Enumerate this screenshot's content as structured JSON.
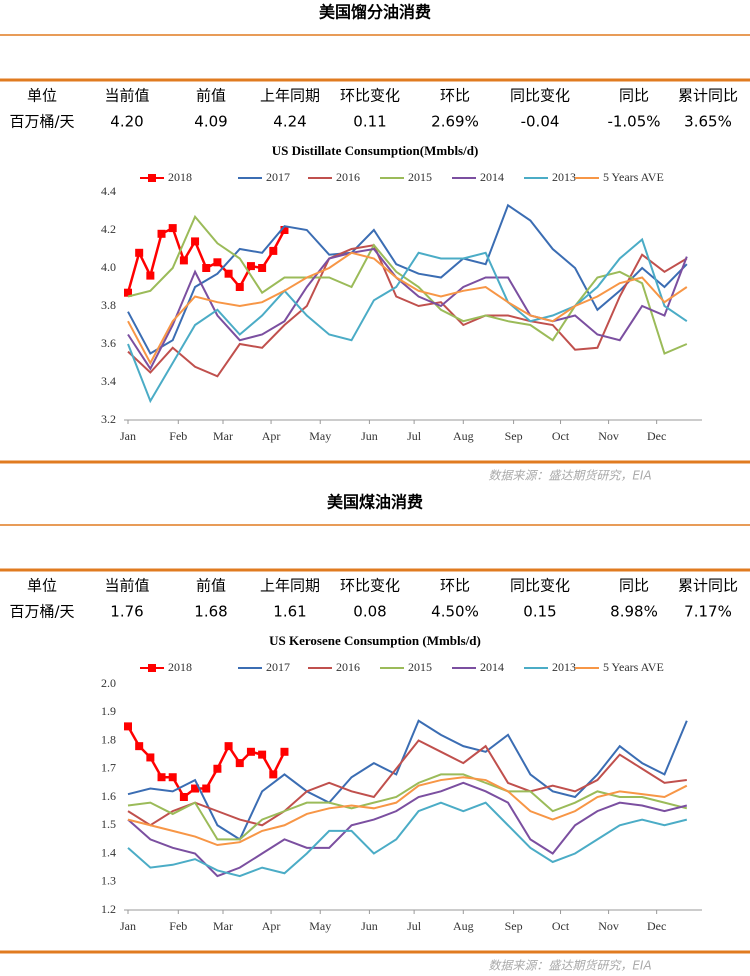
{
  "sections": [
    {
      "title": "美国馏分油消费",
      "table": {
        "header": [
          "单位",
          "当前值",
          "前值",
          "上年同期",
          "环比变化",
          "环比",
          "同比变化",
          "同比",
          "累计同比"
        ],
        "row": [
          "百万桶/天",
          "4.20",
          "4.09",
          "4.24",
          "0.11",
          "2.69%",
          "-0.04",
          "-1.05%",
          "3.65%"
        ]
      },
      "source": "数据来源：盛达期货研究，EIA"
    },
    {
      "title": "美国煤油消费",
      "table": {
        "header": [
          "单位",
          "当前值",
          "前值",
          "上年同期",
          "环比变化",
          "环比",
          "同比变化",
          "同比",
          "累计同比"
        ],
        "row": [
          "百万桶/天",
          "1.76",
          "1.68",
          "1.61",
          "0.08",
          "4.50%",
          "0.15",
          "8.98%",
          "7.17%"
        ]
      },
      "source": "数据来源：盛达期货研究，EIA"
    }
  ],
  "chart_data": [
    {
      "type": "line",
      "title": "US Distillate Consumption(Mmbls/d)",
      "xlim": [
        1,
        52
      ],
      "ylim": [
        3.2,
        4.4
      ],
      "xticks": [
        {
          "value": 1,
          "label": "Jan"
        },
        {
          "value": 5.5,
          "label": "Feb"
        },
        {
          "value": 9.5,
          "label": "Mar"
        },
        {
          "value": 13.8,
          "label": "Apr"
        },
        {
          "value": 18.2,
          "label": "May"
        },
        {
          "value": 22.6,
          "label": "Jun"
        },
        {
          "value": 26.6,
          "label": "Jul"
        },
        {
          "value": 31,
          "label": "Aug"
        },
        {
          "value": 35.5,
          "label": "Sep"
        },
        {
          "value": 39.7,
          "label": "Oct"
        },
        {
          "value": 44,
          "label": "Nov"
        },
        {
          "value": 48.3,
          "label": "Dec"
        }
      ],
      "yticks": [
        3.2,
        3.4,
        3.6,
        3.8,
        {
          "value": 4,
          "label": "4.0"
        },
        4.2,
        4.4
      ],
      "grid": false,
      "x": [
        1,
        3,
        5,
        7,
        9,
        11,
        13,
        15,
        17,
        19,
        21,
        23,
        25,
        27,
        29,
        31,
        33,
        35,
        37,
        39,
        41,
        43,
        45,
        47,
        49,
        51
      ],
      "series": [
        {
          "name": "2018",
          "color": "#ff0000",
          "marker": "square",
          "x": [
            1,
            2,
            3,
            4,
            5,
            6,
            7,
            8,
            9,
            10,
            11,
            12,
            13,
            14,
            15
          ],
          "values": [
            3.87,
            4.08,
            3.96,
            4.18,
            4.21,
            4.04,
            4.14,
            4.0,
            4.03,
            3.97,
            3.9,
            4.01,
            4.0,
            4.09,
            4.2
          ]
        },
        {
          "name": "2017",
          "color": "#3b6db3",
          "values": [
            3.77,
            3.55,
            3.62,
            3.9,
            3.97,
            4.1,
            4.08,
            4.22,
            4.2,
            4.07,
            4.08,
            4.2,
            4.02,
            3.97,
            3.95,
            4.05,
            4.02,
            4.33,
            4.25,
            4.1,
            4.0,
            3.78,
            3.88,
            4.0,
            3.9,
            4.02
          ]
        },
        {
          "name": "2016",
          "color": "#c0504d",
          "values": [
            3.56,
            3.45,
            3.58,
            3.48,
            3.43,
            3.6,
            3.58,
            3.7,
            3.8,
            4.05,
            4.1,
            4.12,
            3.85,
            3.8,
            3.82,
            3.7,
            3.75,
            3.75,
            3.72,
            3.7,
            3.57,
            3.58,
            3.85,
            4.07,
            3.98,
            4.05
          ]
        },
        {
          "name": "2015",
          "color": "#9bbb59",
          "values": [
            3.85,
            3.88,
            4.0,
            4.27,
            4.13,
            4.05,
            3.87,
            3.95,
            3.95,
            3.95,
            3.9,
            4.12,
            3.98,
            3.9,
            3.78,
            3.72,
            3.75,
            3.72,
            3.7,
            3.62,
            3.8,
            3.95,
            3.98,
            3.92,
            3.55,
            3.6
          ]
        },
        {
          "name": "2014",
          "color": "#7b4fa0",
          "values": [
            3.65,
            3.47,
            3.7,
            3.98,
            3.75,
            3.62,
            3.65,
            3.72,
            3.9,
            4.05,
            4.08,
            4.1,
            3.95,
            3.85,
            3.8,
            3.9,
            3.95,
            3.95,
            3.75,
            3.72,
            3.75,
            3.65,
            3.62,
            3.8,
            3.75,
            4.06
          ]
        },
        {
          "name": "2013",
          "color": "#4bacc6",
          "values": [
            3.6,
            3.3,
            3.5,
            3.7,
            3.78,
            3.65,
            3.75,
            3.88,
            3.75,
            3.65,
            3.62,
            3.83,
            3.9,
            4.08,
            4.05,
            4.05,
            4.08,
            3.82,
            3.72,
            3.75,
            3.8,
            3.9,
            4.05,
            4.15,
            3.8,
            3.72
          ]
        },
        {
          "name": "5 Years AVE",
          "color": "#f79646",
          "values": [
            3.72,
            3.5,
            3.72,
            3.85,
            3.82,
            3.8,
            3.82,
            3.88,
            3.95,
            4.0,
            4.08,
            4.05,
            3.95,
            3.88,
            3.85,
            3.88,
            3.9,
            3.82,
            3.75,
            3.72,
            3.8,
            3.85,
            3.92,
            3.95,
            3.82,
            3.9
          ]
        }
      ]
    },
    {
      "type": "line",
      "title": "US Kerosene Consumption (Mmbls/d)",
      "xlim": [
        1,
        52
      ],
      "ylim": [
        1.2,
        2
      ],
      "xticks": [
        {
          "value": 1,
          "label": "Jan"
        },
        {
          "value": 5.5,
          "label": "Feb"
        },
        {
          "value": 9.5,
          "label": "Mar"
        },
        {
          "value": 13.8,
          "label": "Apr"
        },
        {
          "value": 18.2,
          "label": "May"
        },
        {
          "value": 22.6,
          "label": "Jun"
        },
        {
          "value": 26.6,
          "label": "Jul"
        },
        {
          "value": 31,
          "label": "Aug"
        },
        {
          "value": 35.5,
          "label": "Sep"
        },
        {
          "value": 39.7,
          "label": "Oct"
        },
        {
          "value": 44,
          "label": "Nov"
        },
        {
          "value": 48.3,
          "label": "Dec"
        }
      ],
      "yticks": [
        1.2,
        1.3,
        1.4,
        1.5,
        1.6,
        1.7,
        1.8,
        1.9,
        {
          "value": 2,
          "label": "2.0"
        }
      ],
      "grid": false,
      "x": [
        1,
        3,
        5,
        7,
        9,
        11,
        13,
        15,
        17,
        19,
        21,
        23,
        25,
        27,
        29,
        31,
        33,
        35,
        37,
        39,
        41,
        43,
        45,
        47,
        49,
        51
      ],
      "series": [
        {
          "name": "2018",
          "color": "#ff0000",
          "marker": "square",
          "x": [
            1,
            2,
            3,
            4,
            5,
            6,
            7,
            8,
            9,
            10,
            11,
            12,
            13,
            14,
            15
          ],
          "values": [
            1.85,
            1.78,
            1.74,
            1.67,
            1.67,
            1.6,
            1.63,
            1.63,
            1.7,
            1.78,
            1.72,
            1.76,
            1.75,
            1.68,
            1.76
          ]
        },
        {
          "name": "2017",
          "color": "#3b6db3",
          "values": [
            1.61,
            1.63,
            1.62,
            1.66,
            1.5,
            1.45,
            1.62,
            1.68,
            1.62,
            1.58,
            1.67,
            1.72,
            1.68,
            1.87,
            1.82,
            1.78,
            1.76,
            1.82,
            1.68,
            1.62,
            1.6,
            1.68,
            1.78,
            1.72,
            1.68,
            1.87
          ]
        },
        {
          "name": "2016",
          "color": "#c0504d",
          "values": [
            1.55,
            1.5,
            1.55,
            1.58,
            1.55,
            1.52,
            1.5,
            1.55,
            1.62,
            1.65,
            1.62,
            1.6,
            1.7,
            1.8,
            1.76,
            1.72,
            1.78,
            1.65,
            1.62,
            1.64,
            1.62,
            1.66,
            1.75,
            1.7,
            1.65,
            1.66
          ]
        },
        {
          "name": "2015",
          "color": "#9bbb59",
          "values": [
            1.57,
            1.58,
            1.54,
            1.58,
            1.45,
            1.45,
            1.52,
            1.55,
            1.58,
            1.58,
            1.56,
            1.58,
            1.6,
            1.65,
            1.68,
            1.68,
            1.65,
            1.62,
            1.62,
            1.55,
            1.58,
            1.62,
            1.6,
            1.6,
            1.58,
            1.56
          ]
        },
        {
          "name": "2014",
          "color": "#7b4fa0",
          "values": [
            1.52,
            1.45,
            1.42,
            1.4,
            1.32,
            1.35,
            1.4,
            1.45,
            1.42,
            1.42,
            1.5,
            1.52,
            1.55,
            1.6,
            1.62,
            1.65,
            1.62,
            1.58,
            1.45,
            1.4,
            1.5,
            1.55,
            1.58,
            1.57,
            1.55,
            1.57
          ]
        },
        {
          "name": "2013",
          "color": "#4bacc6",
          "values": [
            1.42,
            1.35,
            1.36,
            1.38,
            1.34,
            1.32,
            1.35,
            1.33,
            1.4,
            1.48,
            1.48,
            1.4,
            1.45,
            1.55,
            1.58,
            1.55,
            1.58,
            1.5,
            1.42,
            1.37,
            1.4,
            1.45,
            1.5,
            1.52,
            1.5,
            1.52
          ]
        },
        {
          "name": "5 Years AVE",
          "color": "#f79646",
          "values": [
            1.52,
            1.5,
            1.48,
            1.46,
            1.43,
            1.44,
            1.48,
            1.5,
            1.54,
            1.56,
            1.57,
            1.56,
            1.58,
            1.64,
            1.66,
            1.67,
            1.66,
            1.62,
            1.55,
            1.52,
            1.55,
            1.6,
            1.62,
            1.61,
            1.6,
            1.64
          ]
        }
      ]
    }
  ]
}
